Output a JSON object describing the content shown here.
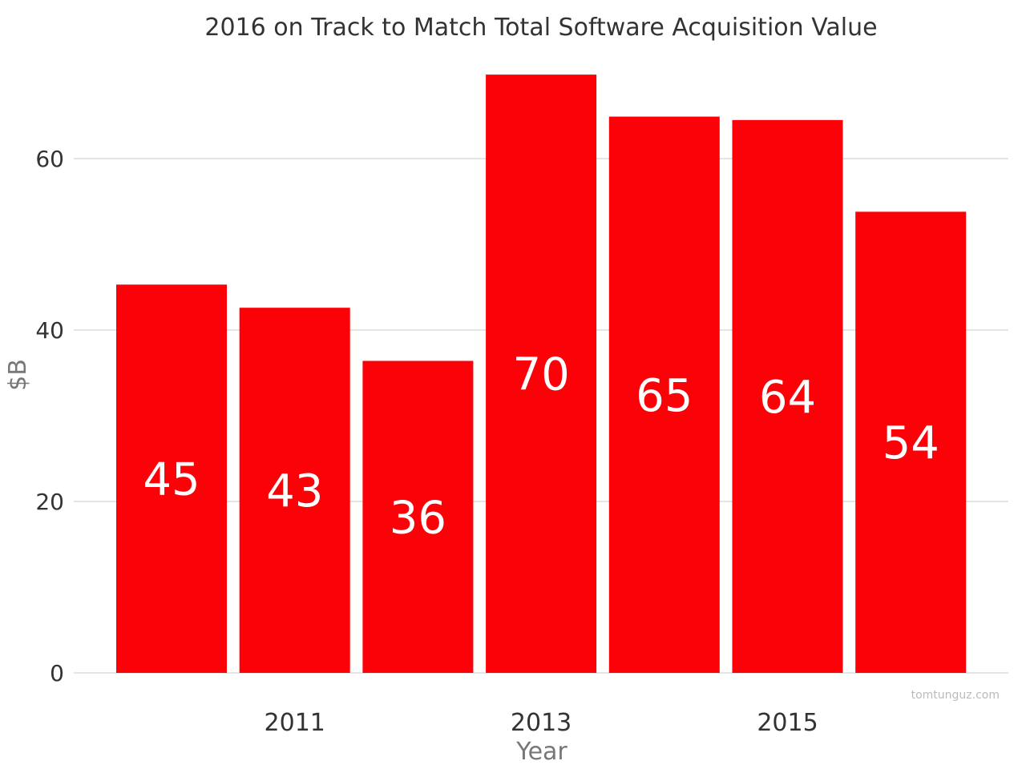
{
  "chart_data": {
    "type": "bar",
    "title": "2016 on Track to Match Total Software Acquisition Value",
    "xlabel": "Year",
    "ylabel": "$B",
    "x": [
      2010,
      2011,
      2012,
      2013,
      2014,
      2015,
      2016
    ],
    "values": [
      45.3,
      42.6,
      36.4,
      69.8,
      64.9,
      64.5,
      53.8
    ],
    "data_labels": [
      "45",
      "43",
      "36",
      "70",
      "65",
      "64",
      "54"
    ],
    "x_tick_labels": [
      "2011",
      "2013",
      "2015"
    ],
    "y_ticks": [
      0,
      20,
      40,
      60
    ],
    "ylim": [
      0,
      70
    ],
    "grid": true,
    "legend": "none"
  },
  "credit": "tomtunguz.com",
  "colors": {
    "bar": "#fa0207",
    "grid": "#d4d4d4",
    "text": "#333333",
    "axis_label": "#777777"
  }
}
